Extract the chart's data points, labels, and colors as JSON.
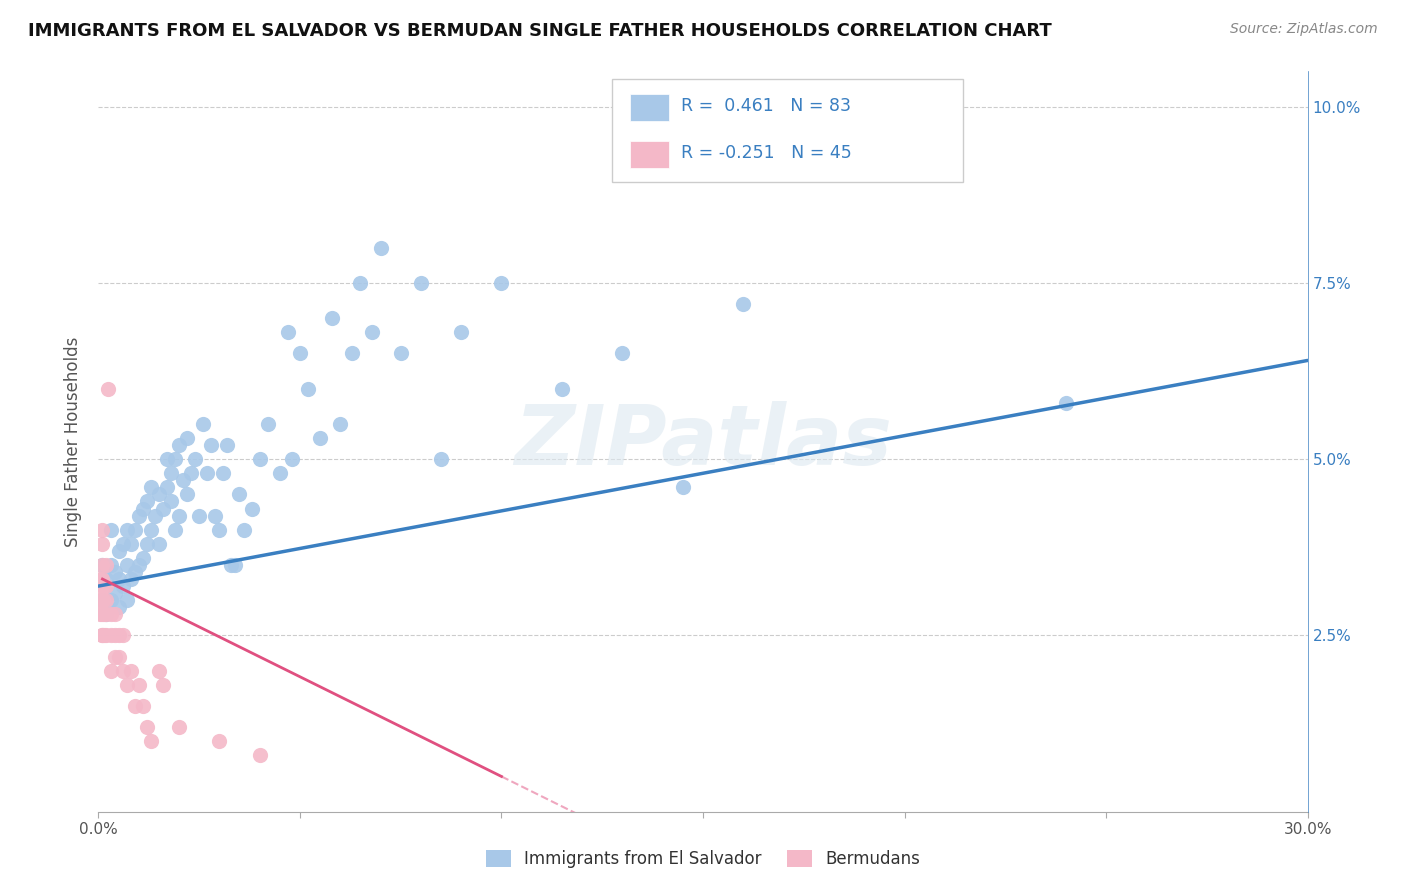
{
  "title": "IMMIGRANTS FROM EL SALVADOR VS BERMUDAN SINGLE FATHER HOUSEHOLDS CORRELATION CHART",
  "source": "Source: ZipAtlas.com",
  "ylabel": "Single Father Households",
  "xlim": [
    0.0,
    0.3
  ],
  "ylim": [
    0.0,
    0.105
  ],
  "xticks": [
    0.0,
    0.05,
    0.1,
    0.15,
    0.2,
    0.25,
    0.3
  ],
  "xtick_labels": [
    "0.0%",
    "",
    "",
    "",
    "",
    "",
    "30.0%"
  ],
  "yticks": [
    0.025,
    0.05,
    0.075,
    0.1
  ],
  "ytick_labels_right": [
    "2.5%",
    "5.0%",
    "7.5%",
    "10.0%"
  ],
  "color_blue": "#a8c8e8",
  "color_pink": "#f4b8c8",
  "line_blue": "#3a7fc1",
  "line_pink": "#e05080",
  "watermark": "ZIPatlas",
  "blue_line_x0": 0.0,
  "blue_line_y0": 0.032,
  "blue_line_x1": 0.3,
  "blue_line_y1": 0.064,
  "pink_line_x0": 0.001,
  "pink_line_y0": 0.033,
  "pink_line_x1": 0.1,
  "pink_line_y1": 0.005,
  "blue_scatter_x": [
    0.001,
    0.001,
    0.002,
    0.002,
    0.003,
    0.003,
    0.003,
    0.004,
    0.004,
    0.005,
    0.005,
    0.005,
    0.006,
    0.006,
    0.007,
    0.007,
    0.007,
    0.008,
    0.008,
    0.009,
    0.009,
    0.01,
    0.01,
    0.011,
    0.011,
    0.012,
    0.012,
    0.013,
    0.013,
    0.014,
    0.015,
    0.015,
    0.016,
    0.017,
    0.017,
    0.018,
    0.018,
    0.019,
    0.019,
    0.02,
    0.02,
    0.021,
    0.022,
    0.022,
    0.023,
    0.024,
    0.025,
    0.026,
    0.027,
    0.028,
    0.029,
    0.03,
    0.031,
    0.032,
    0.033,
    0.034,
    0.035,
    0.036,
    0.038,
    0.04,
    0.042,
    0.045,
    0.047,
    0.048,
    0.05,
    0.052,
    0.055,
    0.058,
    0.06,
    0.063,
    0.065,
    0.068,
    0.07,
    0.075,
    0.08,
    0.085,
    0.09,
    0.1,
    0.115,
    0.13,
    0.145,
    0.16,
    0.24
  ],
  "blue_scatter_y": [
    0.03,
    0.035,
    0.028,
    0.033,
    0.03,
    0.035,
    0.04,
    0.031,
    0.034,
    0.029,
    0.033,
    0.037,
    0.032,
    0.038,
    0.03,
    0.035,
    0.04,
    0.033,
    0.038,
    0.034,
    0.04,
    0.035,
    0.042,
    0.036,
    0.043,
    0.038,
    0.044,
    0.04,
    0.046,
    0.042,
    0.038,
    0.045,
    0.043,
    0.046,
    0.05,
    0.044,
    0.048,
    0.04,
    0.05,
    0.042,
    0.052,
    0.047,
    0.045,
    0.053,
    0.048,
    0.05,
    0.042,
    0.055,
    0.048,
    0.052,
    0.042,
    0.04,
    0.048,
    0.052,
    0.035,
    0.035,
    0.045,
    0.04,
    0.043,
    0.05,
    0.055,
    0.048,
    0.068,
    0.05,
    0.065,
    0.06,
    0.053,
    0.07,
    0.055,
    0.065,
    0.075,
    0.068,
    0.08,
    0.065,
    0.075,
    0.05,
    0.068,
    0.075,
    0.06,
    0.065,
    0.046,
    0.072,
    0.058
  ],
  "pink_scatter_x": [
    0.0003,
    0.0003,
    0.0005,
    0.0005,
    0.0008,
    0.0008,
    0.001,
    0.001,
    0.001,
    0.001,
    0.001,
    0.001,
    0.001,
    0.0012,
    0.0012,
    0.0015,
    0.0015,
    0.002,
    0.002,
    0.002,
    0.002,
    0.002,
    0.0025,
    0.003,
    0.003,
    0.003,
    0.004,
    0.004,
    0.004,
    0.005,
    0.005,
    0.006,
    0.006,
    0.007,
    0.008,
    0.009,
    0.01,
    0.011,
    0.012,
    0.013,
    0.015,
    0.016,
    0.02,
    0.03,
    0.04
  ],
  "pink_scatter_y": [
    0.03,
    0.033,
    0.028,
    0.032,
    0.025,
    0.03,
    0.025,
    0.028,
    0.03,
    0.033,
    0.035,
    0.038,
    0.04,
    0.03,
    0.032,
    0.025,
    0.028,
    0.025,
    0.028,
    0.03,
    0.032,
    0.035,
    0.06,
    0.02,
    0.025,
    0.028,
    0.022,
    0.025,
    0.028,
    0.022,
    0.025,
    0.02,
    0.025,
    0.018,
    0.02,
    0.015,
    0.018,
    0.015,
    0.012,
    0.01,
    0.02,
    0.018,
    0.012,
    0.01,
    0.008
  ]
}
